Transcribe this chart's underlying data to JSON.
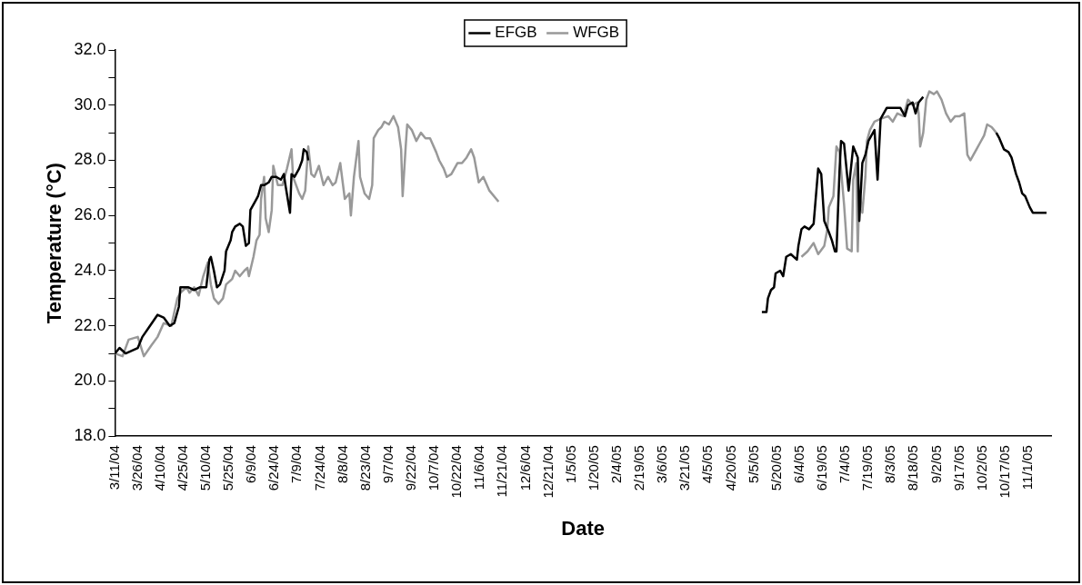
{
  "chart_data": {
    "type": "line",
    "xlabel": "Date",
    "ylabel": "Temperature (°C)",
    "legend": "top",
    "grid": false,
    "xlim": [
      "2004-03-11",
      "2005-11-16"
    ],
    "xticks": [
      {
        "value": "2004-03-11",
        "label": "3/11/04"
      },
      {
        "value": "2004-03-26",
        "label": "3/26/04"
      },
      {
        "value": "2004-04-10",
        "label": "4/10/04"
      },
      {
        "value": "2004-04-25",
        "label": "4/25/04"
      },
      {
        "value": "2004-05-10",
        "label": "5/10/04"
      },
      {
        "value": "2004-05-25",
        "label": "5/25/04"
      },
      {
        "value": "2004-06-09",
        "label": "6/9/04"
      },
      {
        "value": "2004-06-24",
        "label": "6/24/04"
      },
      {
        "value": "2004-07-09",
        "label": "7/9/04"
      },
      {
        "value": "2004-07-24",
        "label": "7/24/04"
      },
      {
        "value": "2004-08-08",
        "label": "8/8/04"
      },
      {
        "value": "2004-08-23",
        "label": "8/23/04"
      },
      {
        "value": "2004-09-07",
        "label": "9/7/04"
      },
      {
        "value": "2004-09-22",
        "label": "9/22/04"
      },
      {
        "value": "2004-10-07",
        "label": "10/7/04"
      },
      {
        "value": "2004-10-22",
        "label": "10/22/04"
      },
      {
        "value": "2004-11-06",
        "label": "11/6/04"
      },
      {
        "value": "2004-11-21",
        "label": "11/21/04"
      },
      {
        "value": "2004-12-06",
        "label": "12/6/04"
      },
      {
        "value": "2004-12-21",
        "label": "12/21/04"
      },
      {
        "value": "2005-01-05",
        "label": "1/5/05"
      },
      {
        "value": "2005-01-20",
        "label": "1/20/05"
      },
      {
        "value": "2005-02-04",
        "label": "2/4/05"
      },
      {
        "value": "2005-02-19",
        "label": "2/19/05"
      },
      {
        "value": "2005-03-06",
        "label": "3/6/05"
      },
      {
        "value": "2005-03-21",
        "label": "3/21/05"
      },
      {
        "value": "2005-04-05",
        "label": "4/5/05"
      },
      {
        "value": "2005-04-20",
        "label": "4/20/05"
      },
      {
        "value": "2005-05-05",
        "label": "5/5/05"
      },
      {
        "value": "2005-05-20",
        "label": "5/20/05"
      },
      {
        "value": "2005-06-04",
        "label": "6/4/05"
      },
      {
        "value": "2005-06-19",
        "label": "6/19/05"
      },
      {
        "value": "2005-07-04",
        "label": "7/4/05"
      },
      {
        "value": "2005-07-19",
        "label": "7/19/05"
      },
      {
        "value": "2005-08-03",
        "label": "8/3/05"
      },
      {
        "value": "2005-08-18",
        "label": "8/18/05"
      },
      {
        "value": "2005-09-02",
        "label": "9/2/05"
      },
      {
        "value": "2005-09-17",
        "label": "9/17/05"
      },
      {
        "value": "2005-10-02",
        "label": "10/2/05"
      },
      {
        "value": "2005-10-17",
        "label": "10/17/05"
      },
      {
        "value": "2005-11-01",
        "label": "11/1/05"
      }
    ],
    "ylim": [
      18,
      32
    ],
    "yticks": [
      {
        "value": 18,
        "label": "18.0"
      },
      {
        "value": 19,
        "label": null
      },
      {
        "value": 20,
        "label": "20.0"
      },
      {
        "value": 21,
        "label": null
      },
      {
        "value": 22,
        "label": "22.0"
      },
      {
        "value": 23,
        "label": null
      },
      {
        "value": 24,
        "label": "24.0"
      },
      {
        "value": 25,
        "label": null
      },
      {
        "value": 26,
        "label": "26.0"
      },
      {
        "value": 27,
        "label": null
      },
      {
        "value": 28,
        "label": "28.0"
      },
      {
        "value": 29,
        "label": null
      },
      {
        "value": 30,
        "label": "30.0"
      },
      {
        "value": 31,
        "label": null
      },
      {
        "value": 32,
        "label": "32.0"
      }
    ],
    "series": [
      {
        "name": "EFGB",
        "color": "#000000",
        "x": [
          "2004-03-11",
          "2004-03-14",
          "2004-03-18",
          "2004-03-22",
          "2004-03-26",
          "2004-03-29",
          "2004-04-03",
          "2004-04-08",
          "2004-04-12",
          "2004-04-16",
          "2004-04-19",
          "2004-04-22",
          "2004-04-23",
          "2004-04-28",
          "2004-05-02",
          "2004-05-06",
          "2004-05-10",
          "2004-05-12",
          "2004-05-13",
          "2004-05-15",
          "2004-05-17",
          "2004-05-19",
          "2004-05-22",
          "2004-05-23",
          "2004-05-26",
          "2004-05-27",
          "2004-05-29",
          "2004-06-01",
          "2004-06-03",
          "2004-06-05",
          "2004-06-07",
          "2004-06-08",
          "2004-06-11",
          "2004-06-13",
          "2004-06-15",
          "2004-06-17",
          "2004-06-20",
          "2004-06-22",
          "2004-06-25",
          "2004-06-28",
          "2004-06-30",
          "2004-07-01",
          "2004-07-04",
          "2004-07-05",
          "2004-07-07",
          "2004-07-10",
          "2004-07-12",
          "2004-07-13",
          "2004-07-15",
          "2004-07-16",
          "2005-01-01",
          "2005-05-10",
          "2005-05-13",
          "2005-05-14",
          "2005-05-16",
          "2005-05-18",
          "2005-05-19",
          "2005-05-22",
          "2005-05-24",
          "2005-05-26",
          "2005-05-29",
          "2005-06-02",
          "2005-06-03",
          "2005-06-05",
          "2005-06-07",
          "2005-06-10",
          "2005-06-13",
          "2005-06-16",
          "2005-06-18",
          "2005-06-20",
          "2005-06-23",
          "2005-06-25",
          "2005-06-27",
          "2005-06-28",
          "2005-06-30",
          "2005-07-01",
          "2005-07-03",
          "2005-07-06",
          "2005-07-09",
          "2005-07-12",
          "2005-07-13",
          "2005-07-15",
          "2005-07-17",
          "2005-07-19",
          "2005-07-21",
          "2005-07-23",
          "2005-07-25",
          "2005-07-27",
          "2005-07-31",
          "2005-08-03",
          "2005-08-06",
          "2005-08-09",
          "2005-08-12",
          "2005-08-14",
          "2005-08-17",
          "2005-08-19",
          "2005-08-21",
          "2005-08-24",
          "2005-09-15",
          "2005-10-11",
          "2005-10-13",
          "2005-10-16",
          "2005-10-19",
          "2005-10-21",
          "2005-10-24",
          "2005-10-26",
          "2005-10-28",
          "2005-10-30",
          "2005-11-02",
          "2005-11-04",
          "2005-11-06",
          "2005-11-09",
          "2005-11-13"
        ],
        "values": [
          21.0,
          21.2,
          21.0,
          21.1,
          21.2,
          21.6,
          22.0,
          22.4,
          22.3,
          22.0,
          22.1,
          22.7,
          23.4,
          23.4,
          23.3,
          23.4,
          23.4,
          24.4,
          24.5,
          24.0,
          23.4,
          23.5,
          24.0,
          24.7,
          25.1,
          25.4,
          25.6,
          25.7,
          25.6,
          24.9,
          25.0,
          26.2,
          26.5,
          26.7,
          27.1,
          27.1,
          27.2,
          27.4,
          27.4,
          27.3,
          27.5,
          27.1,
          26.1,
          27.5,
          27.4,
          27.7,
          28.0,
          28.4,
          28.3,
          28.0,
          null,
          22.5,
          22.5,
          23.0,
          23.3,
          23.4,
          23.9,
          24.0,
          23.8,
          24.5,
          24.6,
          24.4,
          24.9,
          25.5,
          25.6,
          25.5,
          25.7,
          27.7,
          27.5,
          25.8,
          25.4,
          25.1,
          24.7,
          24.7,
          27.6,
          28.7,
          28.6,
          26.9,
          28.5,
          28.1,
          25.8,
          27.9,
          28.2,
          28.7,
          28.9,
          29.1,
          27.3,
          29.5,
          29.9,
          29.9,
          29.9,
          29.9,
          29.6,
          30.0,
          30.1,
          29.7,
          30.1,
          30.3,
          null,
          29.0,
          28.8,
          28.4,
          28.3,
          28.1,
          27.5,
          27.2,
          26.8,
          26.7,
          26.3,
          26.1,
          26.1,
          26.1,
          26.1
        ]
      },
      {
        "name": "WFGB",
        "color": "#999999",
        "x": [
          "2004-03-11",
          "2004-03-16",
          "2004-03-20",
          "2004-03-26",
          "2004-03-30",
          "2004-04-04",
          "2004-04-08",
          "2004-04-12",
          "2004-04-17",
          "2004-04-21",
          "2004-04-23",
          "2004-04-27",
          "2004-04-29",
          "2004-05-02",
          "2004-05-05",
          "2004-05-08",
          "2004-05-11",
          "2004-05-13",
          "2004-05-15",
          "2004-05-18",
          "2004-05-21",
          "2004-05-23",
          "2004-05-27",
          "2004-05-29",
          "2004-06-01",
          "2004-06-04",
          "2004-06-06",
          "2004-06-07",
          "2004-06-10",
          "2004-06-12",
          "2004-06-14",
          "2004-06-15",
          "2004-06-17",
          "2004-06-18",
          "2004-06-20",
          "2004-06-22",
          "2004-06-23",
          "2004-06-26",
          "2004-06-29",
          "2004-07-02",
          "2004-07-05",
          "2004-07-06",
          "2004-07-10",
          "2004-07-12",
          "2004-07-14",
          "2004-07-16",
          "2004-07-18",
          "2004-07-20",
          "2004-07-23",
          "2004-07-26",
          "2004-07-29",
          "2004-08-01",
          "2004-08-03",
          "2004-08-06",
          "2004-08-09",
          "2004-08-12",
          "2004-08-13",
          "2004-08-15",
          "2004-08-18",
          "2004-08-19",
          "2004-08-22",
          "2004-08-25",
          "2004-08-27",
          "2004-08-28",
          "2004-08-31",
          "2004-09-02",
          "2004-09-04",
          "2004-09-07",
          "2004-09-10",
          "2004-09-13",
          "2004-09-15",
          "2004-09-16",
          "2004-09-18",
          "2004-09-19",
          "2004-09-22",
          "2004-09-25",
          "2004-09-28",
          "2004-10-01",
          "2004-10-04",
          "2004-10-08",
          "2004-10-10",
          "2004-10-13",
          "2004-10-15",
          "2004-10-18",
          "2004-10-22",
          "2004-10-25",
          "2004-10-28",
          "2004-10-31",
          "2004-11-02",
          "2004-11-05",
          "2004-11-08",
          "2004-11-12",
          "2004-11-18",
          "2005-01-01",
          "2005-06-05",
          "2005-06-09",
          "2005-06-13",
          "2005-06-16",
          "2005-06-20",
          "2005-06-22",
          "2005-06-23",
          "2005-06-26",
          "2005-06-28",
          "2005-06-30",
          "2005-07-03",
          "2005-07-05",
          "2005-07-08",
          "2005-07-09",
          "2005-07-11",
          "2005-07-12",
          "2005-07-13",
          "2005-07-15",
          "2005-07-17",
          "2005-07-18",
          "2005-07-20",
          "2005-07-23",
          "2005-07-27",
          "2005-08-01",
          "2005-08-04",
          "2005-08-07",
          "2005-08-11",
          "2005-08-14",
          "2005-08-17",
          "2005-08-20",
          "2005-08-21",
          "2005-08-22",
          "2005-08-24",
          "2005-08-26",
          "2005-08-28",
          "2005-08-31",
          "2005-09-02",
          "2005-09-05",
          "2005-09-08",
          "2005-09-11",
          "2005-09-14",
          "2005-09-17",
          "2005-09-20",
          "2005-09-22",
          "2005-09-24",
          "2005-09-26",
          "2005-09-28",
          "2005-09-30",
          "2005-10-03",
          "2005-10-05",
          "2005-10-08",
          "2005-10-11"
        ],
        "values": [
          21.0,
          20.9,
          21.5,
          21.6,
          20.9,
          21.3,
          21.6,
          22.1,
          22.0,
          23.0,
          23.2,
          23.4,
          23.2,
          23.4,
          23.1,
          23.8,
          24.3,
          23.5,
          23.0,
          22.8,
          23.0,
          23.5,
          23.7,
          24.0,
          23.8,
          24.0,
          24.1,
          23.8,
          24.5,
          25.1,
          25.3,
          26.6,
          27.4,
          25.9,
          25.4,
          26.2,
          27.8,
          27.1,
          27.1,
          27.7,
          28.4,
          27.4,
          26.8,
          26.6,
          26.9,
          28.5,
          27.5,
          27.4,
          27.8,
          27.1,
          27.4,
          27.1,
          27.2,
          27.9,
          26.6,
          26.8,
          26.0,
          27.4,
          28.7,
          27.4,
          26.8,
          26.6,
          27.1,
          28.8,
          29.1,
          29.2,
          29.4,
          29.3,
          29.6,
          29.2,
          28.4,
          26.7,
          28.5,
          29.3,
          29.1,
          28.7,
          29.0,
          28.8,
          28.8,
          28.3,
          28.0,
          27.7,
          27.4,
          27.5,
          27.9,
          27.9,
          28.1,
          28.4,
          28.1,
          27.2,
          27.4,
          26.9,
          26.5,
          null,
          24.5,
          24.7,
          25.0,
          24.6,
          24.9,
          25.5,
          26.3,
          26.7,
          28.5,
          28.3,
          26.4,
          24.8,
          24.7,
          27.3,
          27.9,
          24.7,
          26.9,
          26.1,
          27.4,
          28.7,
          29.1,
          29.4,
          29.5,
          29.6,
          29.4,
          29.7,
          29.6,
          30.2,
          30.0,
          30.1,
          29.7,
          28.5,
          29.0,
          30.2,
          30.5,
          30.4,
          30.5,
          30.2,
          29.7,
          29.4,
          29.6,
          29.6,
          29.7,
          28.2,
          28.0,
          28.2,
          28.4,
          28.6,
          28.9,
          29.3,
          29.2,
          29.0
        ]
      }
    ]
  }
}
